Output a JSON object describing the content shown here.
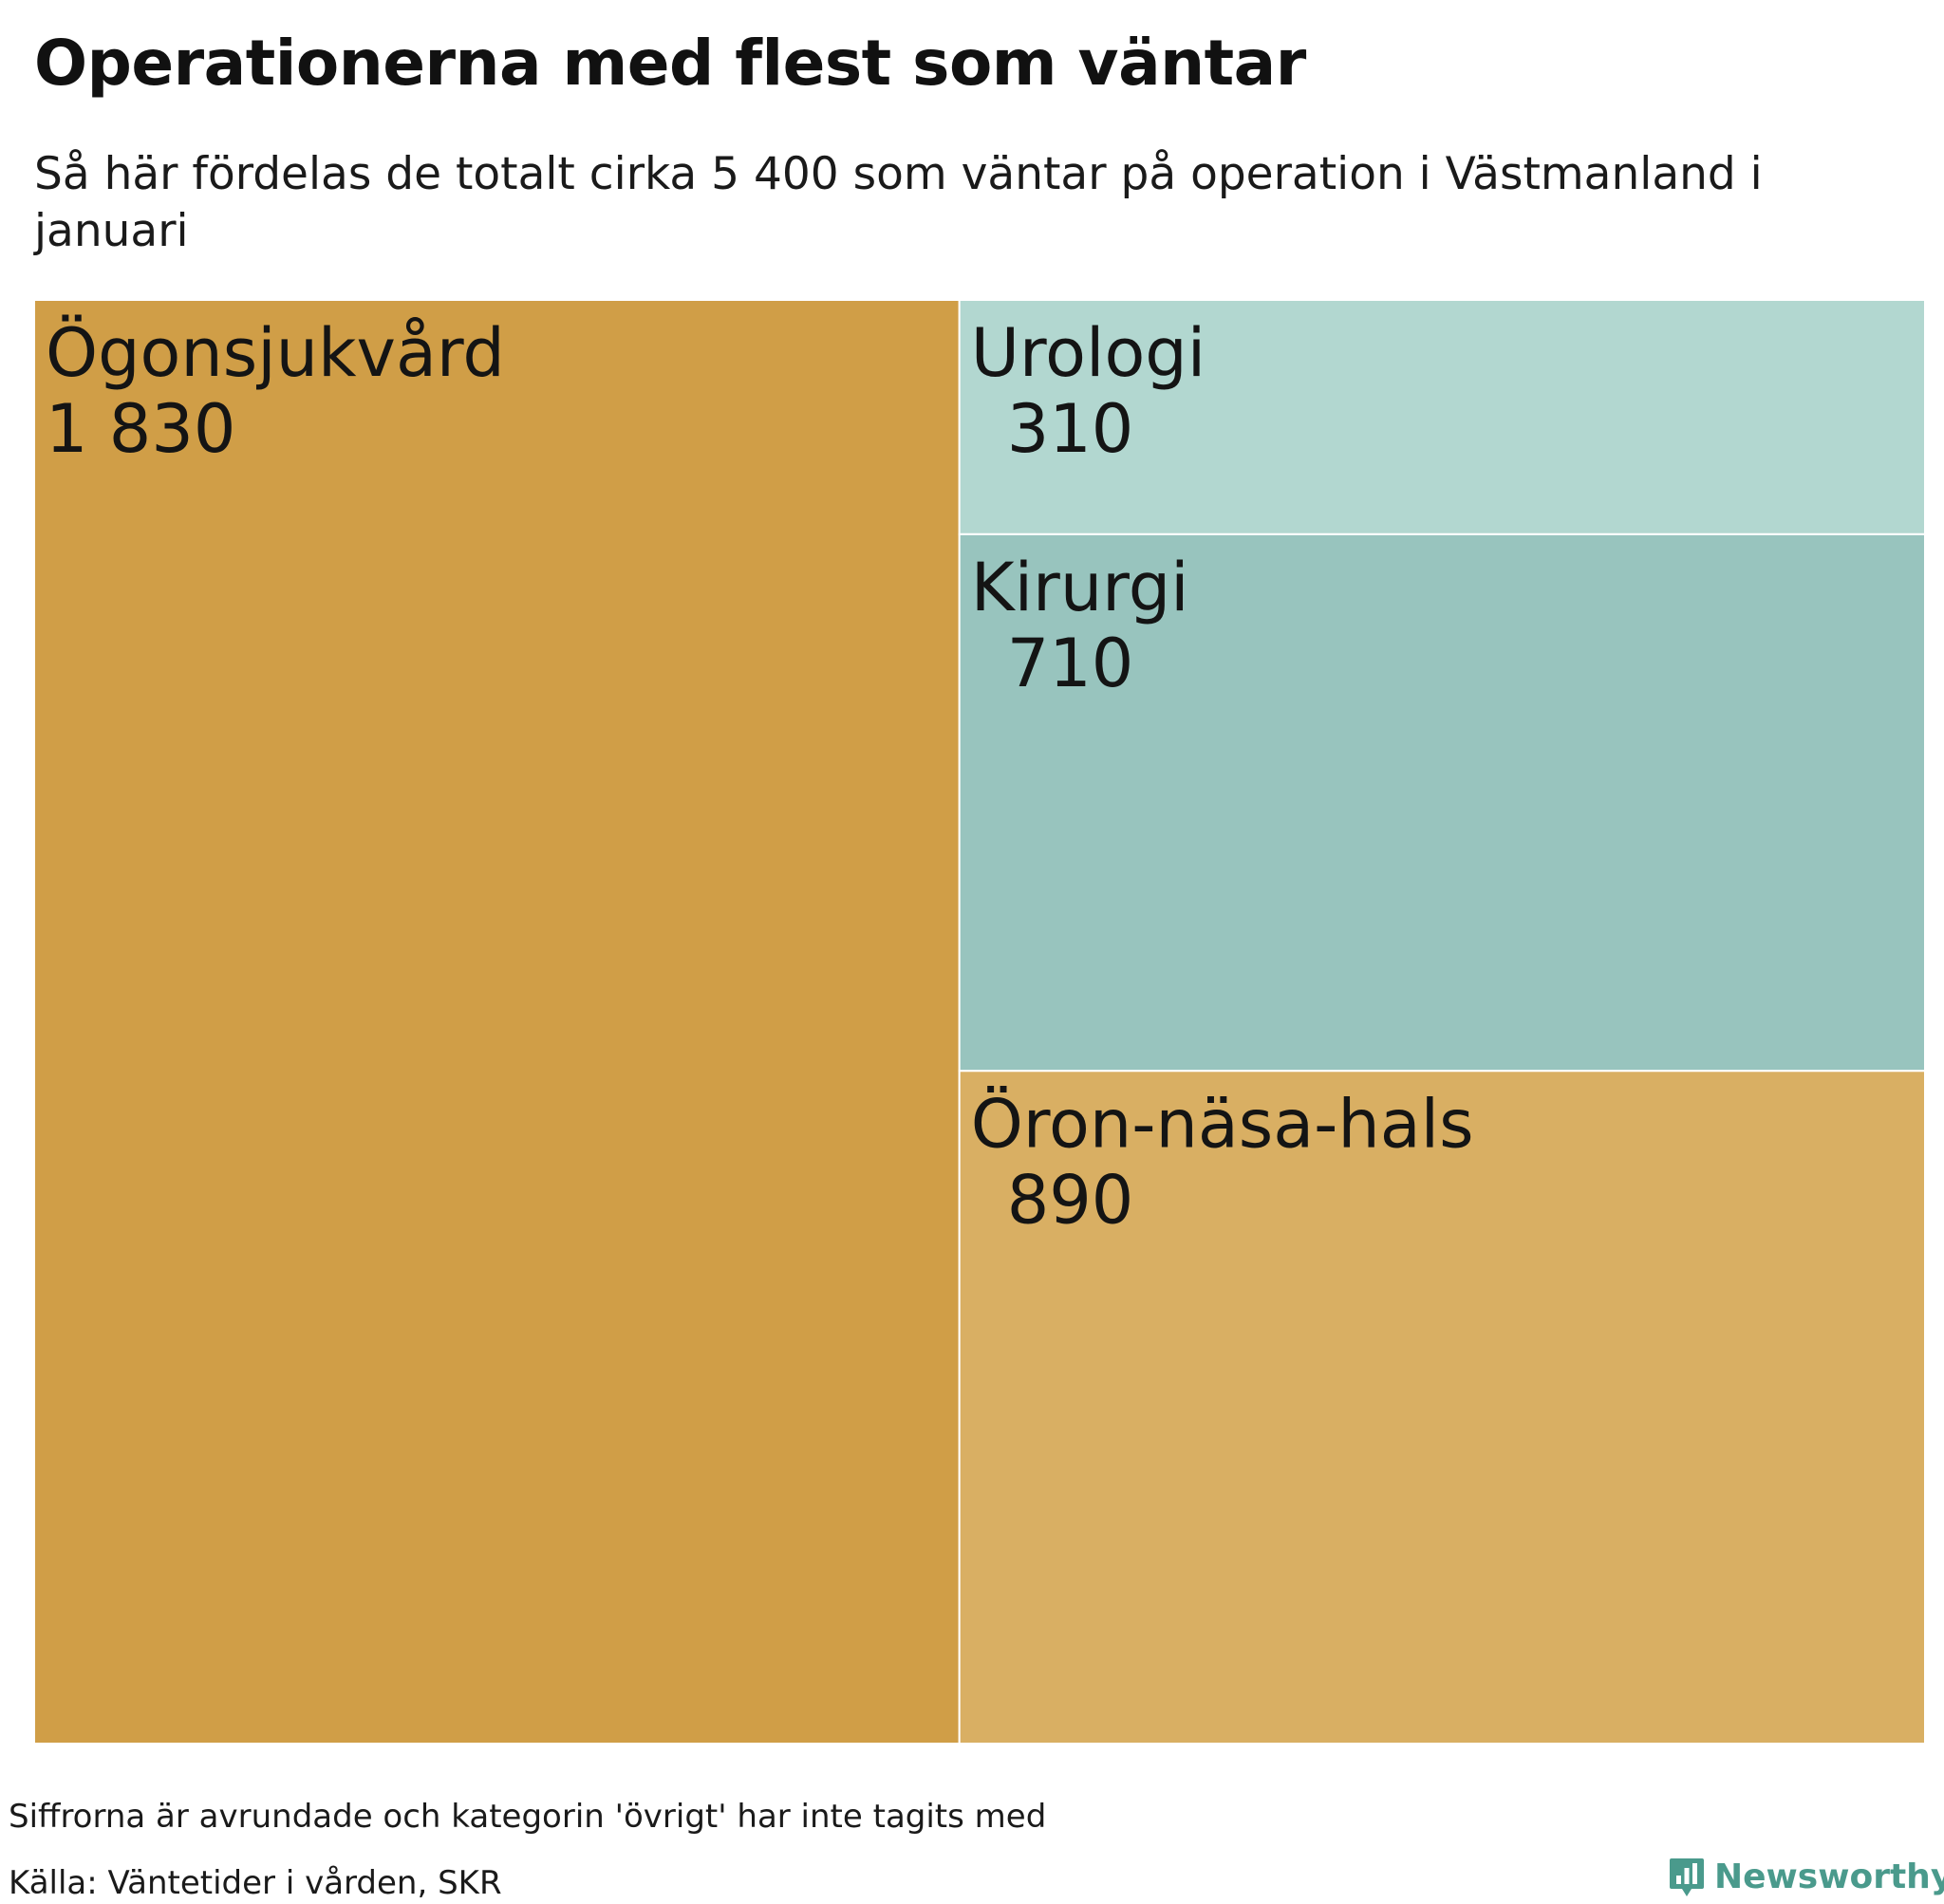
{
  "header": {
    "title": "Operationerna med flest som väntar",
    "subtitle": "Så här fördelas de totalt cirka 5 400 som väntar på operation i Västmanland i januari"
  },
  "chart_data": {
    "type": "treemap",
    "categories": [
      "Ögonsjukvård",
      "Urologi",
      "Kirurgi",
      "Öron-näsa-hals"
    ],
    "values": [
      1830,
      310,
      710,
      890
    ],
    "value_labels": [
      "1 830",
      "310",
      "710",
      "890"
    ],
    "colors": [
      "#d09e47",
      "#b2d7d0",
      "#98c4be",
      "#d9af63"
    ],
    "total_approx": 5400,
    "tile_border_color": "#ffffff"
  },
  "footer": {
    "note": "Siffrorna är avrundade och kategorin 'övrigt' har inte tagits med",
    "source": "Källa: Väntetider i vården, SKR",
    "brand": "Newsworthy",
    "brand_color": "#4a9a8c",
    "brand_icon": "bar-chart-speech-bubble-icon"
  }
}
